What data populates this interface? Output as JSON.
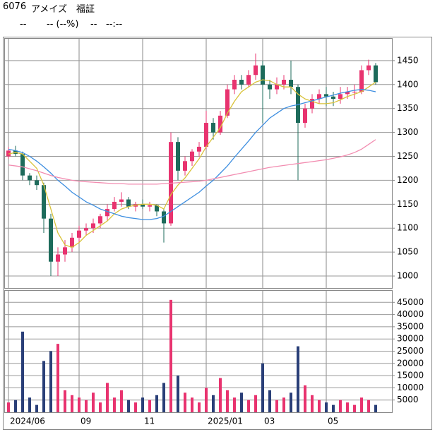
{
  "header": {
    "code": "6076",
    "name": "アメイズ",
    "market": "福証",
    "price": "--",
    "change": "-- (--%)",
    "volume": "--",
    "time": "--:--"
  },
  "chart_data": [
    {
      "type": "candlestick",
      "categories": [
        "2024/06",
        null,
        null,
        null,
        null,
        null,
        null,
        null,
        null,
        null,
        "09",
        null,
        null,
        null,
        null,
        null,
        null,
        null,
        null,
        "11",
        null,
        null,
        null,
        null,
        null,
        null,
        null,
        null,
        "2025/01",
        null,
        null,
        null,
        null,
        null,
        null,
        null,
        "03",
        null,
        null,
        null,
        null,
        null,
        null,
        null,
        null,
        "05",
        null,
        null,
        null,
        null,
        null,
        null,
        null
      ],
      "open": [
        1250,
        1262,
        1255,
        1210,
        1200,
        1190,
        1120,
        1030,
        1045,
        1060,
        1080,
        1095,
        1100,
        1110,
        1125,
        1140,
        1155,
        1160,
        1145,
        1150,
        1145,
        1148,
        1135,
        1110,
        1280,
        1220,
        1240,
        1260,
        1270,
        1320,
        1300,
        1335,
        1390,
        1410,
        1400,
        1420,
        1440,
        1400,
        1390,
        1400,
        1410,
        1395,
        1320,
        1350,
        1370,
        1380,
        1375,
        1370,
        1380,
        1385,
        1385,
        1430,
        1440
      ],
      "high": [
        1270,
        1272,
        1260,
        1215,
        1210,
        1195,
        1130,
        1060,
        1075,
        1090,
        1105,
        1110,
        1120,
        1130,
        1150,
        1165,
        1175,
        1165,
        1155,
        1160,
        1155,
        1150,
        1140,
        1300,
        1290,
        1250,
        1265,
        1280,
        1345,
        1330,
        1345,
        1400,
        1420,
        1420,
        1430,
        1465,
        1450,
        1410,
        1415,
        1420,
        1450,
        1400,
        1360,
        1380,
        1390,
        1395,
        1385,
        1395,
        1395,
        1400,
        1440,
        1452,
        1445
      ],
      "low": [
        1245,
        1250,
        1200,
        1190,
        1180,
        1090,
        1000,
        1000,
        1030,
        1050,
        1070,
        1085,
        1090,
        1100,
        1115,
        1135,
        1145,
        1140,
        1135,
        1140,
        1135,
        1125,
        1070,
        1105,
        1200,
        1210,
        1230,
        1250,
        1265,
        1285,
        1295,
        1330,
        1380,
        1390,
        1395,
        1410,
        1320,
        1370,
        1380,
        1390,
        1380,
        1200,
        1310,
        1340,
        1360,
        1355,
        1355,
        1360,
        1370,
        1370,
        1380,
        1420,
        1400
      ],
      "close": [
        1262,
        1255,
        1210,
        1200,
        1190,
        1120,
        1030,
        1045,
        1060,
        1080,
        1095,
        1100,
        1110,
        1125,
        1140,
        1155,
        1160,
        1145,
        1150,
        1145,
        1148,
        1135,
        1110,
        1280,
        1220,
        1240,
        1260,
        1270,
        1320,
        1300,
        1335,
        1390,
        1410,
        1400,
        1420,
        1440,
        1400,
        1390,
        1400,
        1410,
        1395,
        1320,
        1350,
        1370,
        1380,
        1375,
        1370,
        1380,
        1385,
        1385,
        1430,
        1440,
        1405
      ],
      "up_color": "#e8336f",
      "down_color": "#1d6b5b",
      "series": [
        {
          "color": "#d9c23a",
          "values": [
            1255,
            1258,
            1255,
            1240,
            1225,
            1190,
            1140,
            1090,
            1065,
            1060,
            1070,
            1085,
            1095,
            1105,
            1115,
            1130,
            1140,
            1145,
            1148,
            1150,
            1150,
            1148,
            1140,
            1170,
            1190,
            1205,
            1225,
            1245,
            1270,
            1290,
            1310,
            1340,
            1365,
            1385,
            1395,
            1405,
            1410,
            1408,
            1400,
            1395,
            1395,
            1380,
            1370,
            1365,
            1360,
            1360,
            1362,
            1368,
            1375,
            1380,
            1385,
            1395,
            1405
          ]
        },
        {
          "color": "#3d8ee0",
          "values": [
            1265,
            1262,
            1258,
            1250,
            1240,
            1228,
            1215,
            1200,
            1188,
            1175,
            1165,
            1155,
            1148,
            1140,
            1135,
            1130,
            1125,
            1122,
            1120,
            1118,
            1118,
            1120,
            1125,
            1135,
            1145,
            1155,
            1165,
            1175,
            1188,
            1200,
            1215,
            1230,
            1248,
            1265,
            1282,
            1300,
            1315,
            1330,
            1340,
            1350,
            1355,
            1358,
            1362,
            1366,
            1370,
            1374,
            1378,
            1382,
            1385,
            1388,
            1390,
            1388,
            1385
          ]
        },
        {
          "color": "#f28cb0",
          "values": [
            1232,
            1230,
            1228,
            1224,
            1220,
            1215,
            1210,
            1206,
            1203,
            1200,
            1198,
            1197,
            1196,
            1195,
            1194,
            1193,
            1193,
            1192,
            1192,
            1192,
            1192,
            1192,
            1193,
            1194,
            1195,
            1196,
            1197,
            1198,
            1200,
            1203,
            1206,
            1209,
            1212,
            1215,
            1218,
            1221,
            1224,
            1227,
            1229,
            1231,
            1233,
            1235,
            1237,
            1239,
            1241,
            1243,
            1246,
            1249,
            1253,
            1258,
            1265,
            1275,
            1285
          ]
        }
      ],
      "ylim": [
        975,
        1497
      ],
      "yticks": [
        1000,
        1050,
        1100,
        1150,
        1200,
        1250,
        1300,
        1350,
        1400,
        1450
      ],
      "grid": true
    },
    {
      "type": "bar",
      "values": [
        4000,
        5000,
        33000,
        6000,
        3000,
        21000,
        25000,
        28000,
        9000,
        7000,
        6000,
        5000,
        8000,
        4000,
        12000,
        6000,
        9000,
        5000,
        4000,
        6000,
        5000,
        7000,
        12000,
        46000,
        15000,
        8000,
        6000,
        4000,
        10000,
        7000,
        14000,
        9000,
        6000,
        8000,
        5000,
        7000,
        20000,
        9000,
        5000,
        6000,
        8000,
        27000,
        11000,
        7000,
        5000,
        4000,
        3000,
        5000,
        4000,
        3000,
        6000,
        5000,
        3000
      ],
      "up_color": "#e8336f",
      "down_color": "#2a3f78",
      "ylim": [
        0,
        50000
      ],
      "yticks": [
        5000,
        10000,
        15000,
        20000,
        25000,
        30000,
        35000,
        40000,
        45000
      ],
      "grid": true
    }
  ]
}
